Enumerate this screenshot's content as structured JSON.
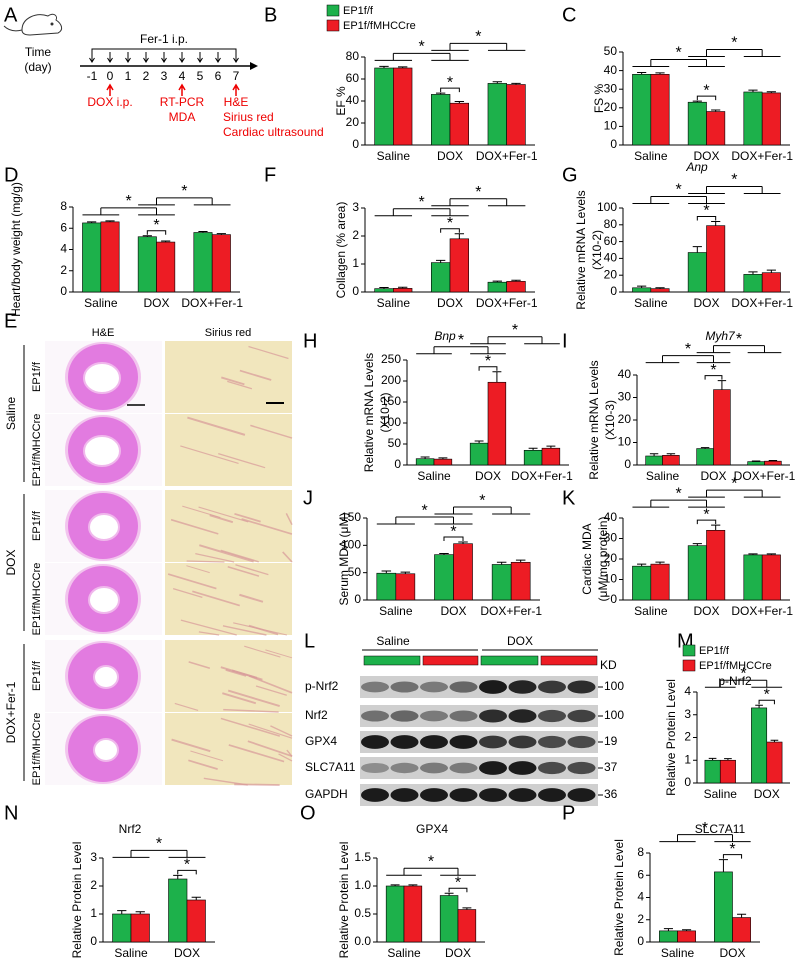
{
  "timeline": {
    "panel": "A",
    "time_label": "Time",
    "unit_label": "(day)",
    "treatment": "Fer-1 i.p.",
    "days": [
      -1,
      0,
      1,
      2,
      3,
      4,
      5,
      6,
      7
    ],
    "events": [
      {
        "day": 0,
        "lines": [
          "DOX  i.p."
        ]
      },
      {
        "day": 4,
        "lines": [
          "RT-PCR",
          "MDA"
        ]
      },
      {
        "day": 7,
        "lines": [
          "H&E",
          "Sirius red",
          "Cardiac ultrasound"
        ]
      }
    ]
  },
  "histology": {
    "panel": "E",
    "columns": [
      "H&E",
      "Sirius red"
    ],
    "groups": [
      {
        "label": "Saline",
        "rows": [
          "EP1f/f",
          "EP1f/fMHCCre"
        ]
      },
      {
        "label": "DOX",
        "rows": [
          "EP1f/f",
          "EP1f/fMHCCre"
        ]
      },
      {
        "label": "DOX+Fer-1",
        "rows": [
          "EP1f/f",
          "EP1f/fMHCCre"
        ]
      }
    ]
  },
  "western_blot": {
    "panel": "L",
    "groups": [
      "Saline",
      "DOX"
    ],
    "unit": "KD",
    "rows": [
      {
        "label": "p-Nrf2",
        "kd": "100"
      },
      {
        "label": "Nrf2",
        "kd": "100"
      },
      {
        "label": "GPX4",
        "kd": "19"
      },
      {
        "label": "SLC7A11",
        "kd": "37"
      },
      {
        "label": "GAPDH",
        "kd": "36"
      }
    ]
  },
  "chart_data": [
    {
      "panel": "B",
      "type": "bar",
      "ylabel": [
        "EF %"
      ],
      "categories": [
        "Saline",
        "DOX",
        "DOX+Fer-1"
      ],
      "legend": "top",
      "series": [
        {
          "name": "EP1f/f",
          "color": "#1db14b",
          "values": [
            70,
            46,
            56
          ],
          "errors": [
            1.5,
            1.2,
            1.5
          ]
        },
        {
          "name": "EP1f/fMHCCre",
          "color": "#ed1c24",
          "values": [
            70,
            38,
            55
          ],
          "errors": [
            1,
            1.5,
            1
          ]
        }
      ],
      "ylim": [
        0,
        80
      ],
      "yticks": [
        0,
        20,
        40,
        60,
        80
      ],
      "annotations": [
        "*",
        "*",
        "*"
      ]
    },
    {
      "panel": "C",
      "type": "bar",
      "ylabel": [
        "FS %"
      ],
      "categories": [
        "Saline",
        "DOX",
        "DOX+Fer-1"
      ],
      "series": [
        {
          "color": "#1db14b",
          "values": [
            38,
            23,
            28.5
          ],
          "errors": [
            1,
            0.6,
            1
          ]
        },
        {
          "color": "#ed1c24",
          "values": [
            38,
            18,
            28
          ],
          "errors": [
            0.8,
            0.8,
            0.6
          ]
        }
      ],
      "ylim": [
        0,
        50
      ],
      "yticks": [
        0,
        10,
        20,
        30,
        40,
        50
      ],
      "annotations": [
        "*",
        "*",
        "*"
      ]
    },
    {
      "panel": "D",
      "type": "bar",
      "ylabel": [
        "Heart/body weight (mg/g)"
      ],
      "categories": [
        "Saline",
        "DOX",
        "DOX+Fer-1"
      ],
      "series": [
        {
          "color": "#1db14b",
          "values": [
            6.5,
            5.2,
            5.6
          ],
          "errors": [
            0.1,
            0.1,
            0.1
          ]
        },
        {
          "color": "#ed1c24",
          "values": [
            6.6,
            4.7,
            5.4
          ],
          "errors": [
            0.1,
            0.1,
            0.1
          ]
        }
      ],
      "ylim": [
        0,
        8
      ],
      "yticks": [
        0,
        2,
        4,
        6,
        8
      ],
      "annotations": [
        "*",
        "*",
        "*"
      ]
    },
    {
      "panel": "F",
      "type": "bar",
      "ylabel": [
        "Collagen (% area)"
      ],
      "categories": [
        "Saline",
        "DOX",
        "DOX+Fer-1"
      ],
      "series": [
        {
          "color": "#1db14b",
          "values": [
            0.12,
            1.05,
            0.35
          ],
          "errors": [
            0.04,
            0.08,
            0.04
          ]
        },
        {
          "color": "#ed1c24",
          "values": [
            0.13,
            1.9,
            0.38
          ],
          "errors": [
            0.04,
            0.18,
            0.04
          ]
        }
      ],
      "ylim": [
        0,
        3
      ],
      "yticks": [
        0,
        1,
        2,
        3
      ],
      "annotations": [
        "*",
        "*",
        "*"
      ]
    },
    {
      "panel": "G",
      "type": "bar",
      "title": "Anp",
      "title_style": "italic",
      "ylabel": [
        "Relative mRNA Levels",
        "(X10-2)"
      ],
      "categories": [
        "Saline",
        "DOX",
        "DOX+Fer-1"
      ],
      "series": [
        {
          "color": "#1db14b",
          "values": [
            5,
            47,
            21
          ],
          "errors": [
            2,
            7,
            3
          ]
        },
        {
          "color": "#ed1c24",
          "values": [
            4,
            79,
            23
          ],
          "errors": [
            1,
            5,
            3
          ]
        }
      ],
      "ylim": [
        0,
        100
      ],
      "yticks": [
        0,
        20,
        40,
        60,
        80,
        100
      ],
      "annotations": [
        "*",
        "*",
        "*"
      ]
    },
    {
      "panel": "H",
      "type": "bar",
      "title": "Bnp",
      "title_style": "italic",
      "ylabel": [
        "Relative mRNA Levels",
        "(X10-2)"
      ],
      "categories": [
        "Saline",
        "DOX",
        "DOX+Fer-1"
      ],
      "series": [
        {
          "color": "#1db14b",
          "values": [
            15,
            52,
            35
          ],
          "errors": [
            4,
            5,
            5
          ]
        },
        {
          "color": "#ed1c24",
          "values": [
            14,
            197,
            40
          ],
          "errors": [
            3,
            25,
            5
          ]
        }
      ],
      "ylim": [
        0,
        250
      ],
      "yticks": [
        0,
        50,
        100,
        150,
        200,
        250
      ],
      "annotations": [
        "*",
        "*",
        "*"
      ]
    },
    {
      "panel": "I",
      "type": "bar",
      "title": "Myh7",
      "title_style": "italic",
      "ylabel": [
        "Relative mRNA Levels",
        "(X10-3)"
      ],
      "categories": [
        "Saline",
        "DOX",
        "DOX+Fer-1"
      ],
      "series": [
        {
          "color": "#1db14b",
          "values": [
            4,
            7.3,
            1.5
          ],
          "errors": [
            1,
            0.4,
            0.3
          ]
        },
        {
          "color": "#ed1c24",
          "values": [
            4.3,
            33.5,
            1.7
          ],
          "errors": [
            0.7,
            4,
            0.3
          ]
        }
      ],
      "ylim": [
        0,
        40
      ],
      "yticks": [
        0,
        10,
        20,
        30,
        40
      ],
      "annotations": [
        "*",
        "*",
        "*"
      ]
    },
    {
      "panel": "J",
      "type": "bar",
      "ylabel": [
        "Serum MDA (μM)"
      ],
      "categories": [
        "Saline",
        "DOX",
        "DOX+Fer-1"
      ],
      "series": [
        {
          "color": "#1db14b",
          "values": [
            49,
            83,
            65
          ],
          "errors": [
            4,
            2,
            4
          ]
        },
        {
          "color": "#ed1c24",
          "values": [
            48,
            103,
            69
          ],
          "errors": [
            3,
            3,
            4
          ]
        }
      ],
      "ylim": [
        0,
        150
      ],
      "yticks": [
        0,
        50,
        100,
        150
      ],
      "annotations": [
        "*",
        "*",
        "*"
      ]
    },
    {
      "panel": "K",
      "type": "bar",
      "ylabel": [
        "Cardiac MDA",
        "(μM/mg protein)"
      ],
      "categories": [
        "Saline",
        "DOX",
        "DOX+Fer-1"
      ],
      "series": [
        {
          "color": "#1db14b",
          "values": [
            16.5,
            26.5,
            22
          ],
          "errors": [
            1,
            1,
            0.5
          ]
        },
        {
          "color": "#ed1c24",
          "values": [
            17.5,
            34,
            22
          ],
          "errors": [
            1,
            2.5,
            0.5
          ]
        }
      ],
      "ylim": [
        0,
        40
      ],
      "yticks": [
        0,
        10,
        20,
        30,
        40
      ],
      "annotations": [
        "*",
        "*",
        "*"
      ]
    },
    {
      "panel": "M",
      "type": "bar",
      "title": "p-Nrf2",
      "ylabel": [
        "Relative Protein Level"
      ],
      "categories": [
        "Saline",
        "DOX"
      ],
      "legend": "top",
      "series": [
        {
          "name": "EP1f/f",
          "color": "#1db14b",
          "values": [
            1.0,
            3.3
          ],
          "errors": [
            0.08,
            0.12
          ]
        },
        {
          "name": "EP1f/fMHCCre",
          "color": "#ed1c24",
          "values": [
            1.0,
            1.8
          ],
          "errors": [
            0.07,
            0.08
          ]
        }
      ],
      "ylim": [
        0,
        4
      ],
      "yticks": [
        0,
        1,
        2,
        3,
        4
      ],
      "annotations": [
        "*",
        "*"
      ]
    },
    {
      "panel": "N",
      "type": "bar",
      "title": "Nrf2",
      "ylabel": [
        "Relative Protein Level"
      ],
      "categories": [
        "Saline",
        "DOX"
      ],
      "series": [
        {
          "color": "#1db14b",
          "values": [
            1.0,
            2.25
          ],
          "errors": [
            0.12,
            0.13
          ]
        },
        {
          "color": "#ed1c24",
          "values": [
            1.0,
            1.5
          ],
          "errors": [
            0.08,
            0.1
          ]
        }
      ],
      "ylim": [
        0,
        3
      ],
      "yticks": [
        0,
        1,
        2,
        3
      ],
      "annotations": [
        "*",
        "*"
      ]
    },
    {
      "panel": "O",
      "type": "bar",
      "title": "GPX4",
      "ylabel": [
        "Relative Protein Level"
      ],
      "categories": [
        "Saline",
        "DOX"
      ],
      "series": [
        {
          "color": "#1db14b",
          "values": [
            1.0,
            0.83
          ],
          "errors": [
            0.02,
            0.04
          ]
        },
        {
          "color": "#ed1c24",
          "values": [
            1.0,
            0.58
          ],
          "errors": [
            0.02,
            0.03
          ]
        }
      ],
      "ylim": [
        0,
        1.5
      ],
      "yticks": [
        {
          "value": 0,
          "label": "0.0"
        },
        {
          "value": 0.5,
          "label": "0.5"
        },
        {
          "value": 1,
          "label": "1.0"
        },
        {
          "value": 1.5,
          "label": "1.5"
        }
      ],
      "annotations": [
        "*",
        "*"
      ]
    },
    {
      "panel": "P",
      "type": "bar",
      "title": "SLC7A11",
      "ylabel": [
        "Relative Protein Level"
      ],
      "categories": [
        "Saline",
        "DOX"
      ],
      "series": [
        {
          "color": "#1db14b",
          "values": [
            1.0,
            6.3
          ],
          "errors": [
            0.2,
            1.1
          ]
        },
        {
          "color": "#ed1c24",
          "values": [
            1.0,
            2.2
          ],
          "errors": [
            0.1,
            0.3
          ]
        }
      ],
      "ylim": [
        0,
        8
      ],
      "yticks": [
        0,
        2,
        4,
        6,
        8
      ],
      "annotations": [
        "*",
        "*"
      ]
    }
  ]
}
